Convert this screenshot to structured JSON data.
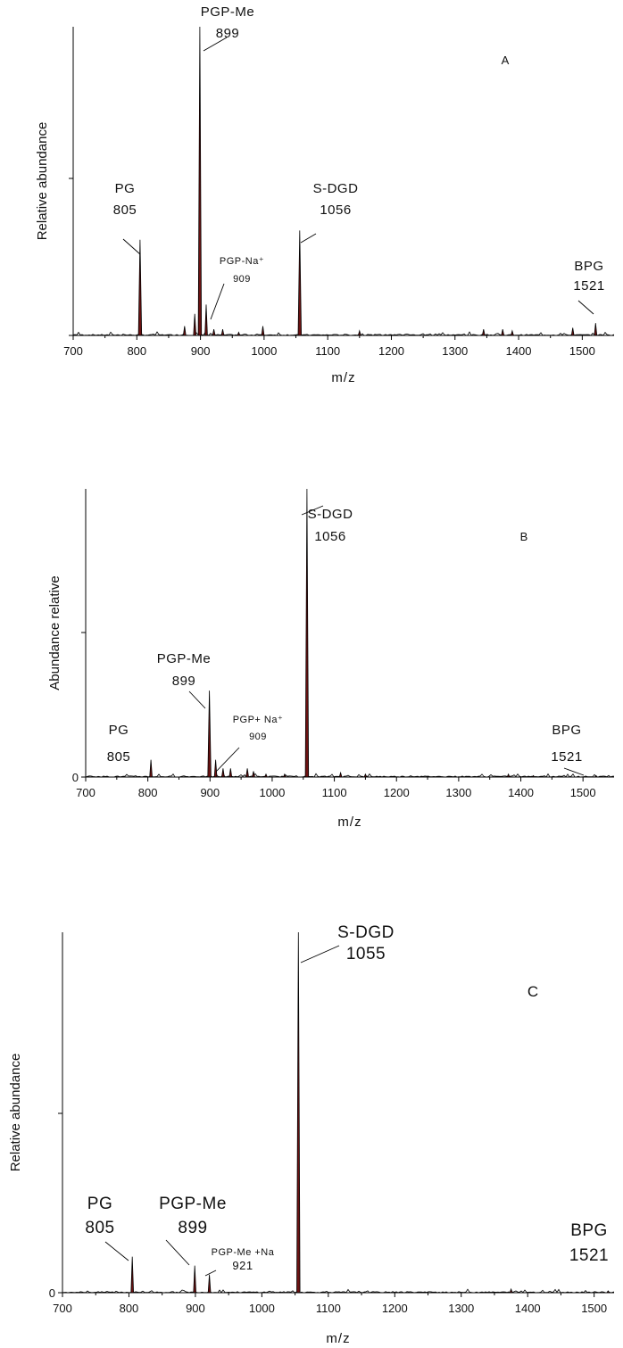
{
  "colors": {
    "peak_fill": "#6b1111",
    "peak_stroke": "#000000",
    "axis": "#000000",
    "background": "#ffffff"
  },
  "chart_data": [
    {
      "type": "line",
      "panel_label": "A",
      "xlabel": "m/z",
      "ylabel": "Relative abundance",
      "xlim": [
        700,
        1550
      ],
      "ylim": [
        0,
        100
      ],
      "x_ticks": [
        700,
        800,
        900,
        1000,
        1100,
        1200,
        1300,
        1400,
        1500
      ],
      "y_ticks": [
        0,
        50
      ],
      "y_tick_labels": [
        "",
        ""
      ],
      "grid": false,
      "peaks": [
        {
          "x": 805,
          "y": 31
        },
        {
          "x": 875,
          "y": 3
        },
        {
          "x": 891,
          "y": 7
        },
        {
          "x": 899,
          "y": 100
        },
        {
          "x": 909,
          "y": 10
        },
        {
          "x": 921,
          "y": 2
        },
        {
          "x": 935,
          "y": 2
        },
        {
          "x": 960,
          "y": 1
        },
        {
          "x": 998,
          "y": 3
        },
        {
          "x": 1056,
          "y": 34
        },
        {
          "x": 1150,
          "y": 1.5
        },
        {
          "x": 1345,
          "y": 2
        },
        {
          "x": 1375,
          "y": 2
        },
        {
          "x": 1390,
          "y": 1.5
        },
        {
          "x": 1485,
          "y": 2.5
        },
        {
          "x": 1521,
          "y": 4
        }
      ],
      "annotations": [
        {
          "name": "PG",
          "value": "805",
          "x": 805,
          "y": 31
        },
        {
          "name": "PGP-Me",
          "value": "899",
          "x": 899,
          "y": 100
        },
        {
          "name": "PGP-Na⁺",
          "value": "909",
          "x": 909,
          "y": 10
        },
        {
          "name": "S-DGD",
          "value": "1056",
          "x": 1056,
          "y": 34
        },
        {
          "name": "BPG",
          "value": "1521",
          "x": 1521,
          "y": 4
        }
      ]
    },
    {
      "type": "line",
      "panel_label": "B",
      "xlabel": "m/z",
      "ylabel": "Abundance relative",
      "xlim": [
        700,
        1550
      ],
      "ylim": [
        0,
        100
      ],
      "x_ticks": [
        700,
        800,
        900,
        1000,
        1100,
        1200,
        1300,
        1400,
        1500
      ],
      "y_ticks": [
        0,
        50
      ],
      "y_tick_labels": [
        "0",
        ""
      ],
      "grid": false,
      "peaks": [
        {
          "x": 805,
          "y": 6
        },
        {
          "x": 899,
          "y": 30
        },
        {
          "x": 909,
          "y": 6
        },
        {
          "x": 921,
          "y": 3
        },
        {
          "x": 933,
          "y": 3
        },
        {
          "x": 960,
          "y": 3
        },
        {
          "x": 970,
          "y": 2
        },
        {
          "x": 990,
          "y": 1
        },
        {
          "x": 1020,
          "y": 1
        },
        {
          "x": 1056,
          "y": 100
        },
        {
          "x": 1110,
          "y": 1.5
        },
        {
          "x": 1150,
          "y": 1
        },
        {
          "x": 1380,
          "y": 1
        },
        {
          "x": 1420,
          "y": 0.5
        },
        {
          "x": 1521,
          "y": 0.5
        }
      ],
      "annotations": [
        {
          "name": "PG",
          "value": "805",
          "x": 805,
          "y": 6
        },
        {
          "name": "PGP-Me",
          "value": "899",
          "x": 899,
          "y": 30
        },
        {
          "name": "PGP+ Na⁺",
          "value": "909",
          "x": 909,
          "y": 6
        },
        {
          "name": "S-DGD",
          "value": "1056",
          "x": 1056,
          "y": 100
        },
        {
          "name": "BPG",
          "value": "1521",
          "x": 1521,
          "y": 0.5
        }
      ]
    },
    {
      "type": "line",
      "panel_label": "C",
      "xlabel": "m/z",
      "ylabel": "Relative abundance",
      "xlim": [
        700,
        1530
      ],
      "ylim": [
        0,
        100
      ],
      "x_ticks": [
        700,
        800,
        900,
        1000,
        1100,
        1200,
        1300,
        1400,
        1500
      ],
      "y_ticks": [
        0,
        50
      ],
      "y_tick_labels": [
        "0",
        ""
      ],
      "grid": false,
      "peaks": [
        {
          "x": 805,
          "y": 10
        },
        {
          "x": 899,
          "y": 7.5
        },
        {
          "x": 921,
          "y": 5
        },
        {
          "x": 1055,
          "y": 100
        },
        {
          "x": 1375,
          "y": 1
        },
        {
          "x": 1521,
          "y": 0.5
        }
      ],
      "annotations": [
        {
          "name": "PG",
          "value": "805",
          "x": 805,
          "y": 10
        },
        {
          "name": "PGP-Me",
          "value": "899",
          "x": 899,
          "y": 7.5
        },
        {
          "name": "PGP-Me +Na",
          "value": "921",
          "x": 921,
          "y": 5
        },
        {
          "name": "S-DGD",
          "value": "1055",
          "x": 1055,
          "y": 100
        },
        {
          "name": "BPG",
          "value": "1521",
          "x": 1521,
          "y": 0.5
        }
      ]
    }
  ]
}
